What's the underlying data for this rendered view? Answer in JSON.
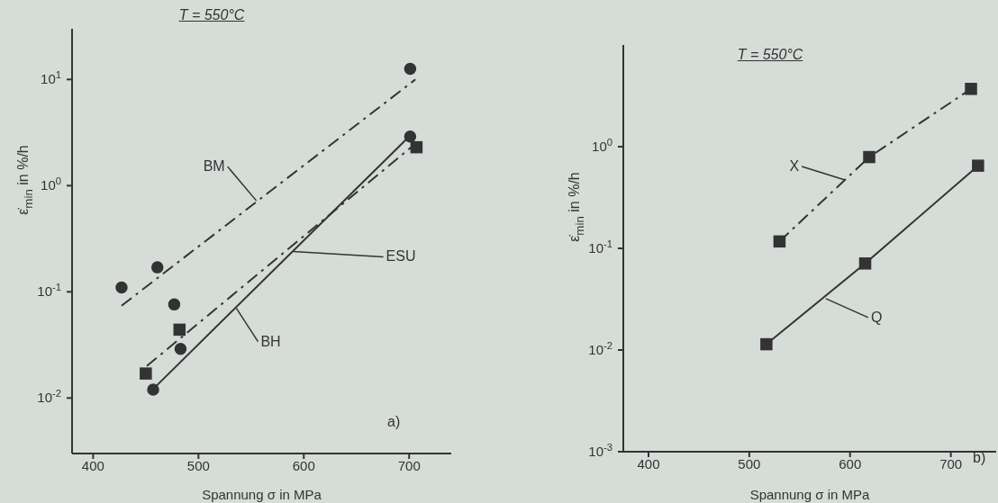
{
  "chart_data": [
    {
      "type": "scatter",
      "title": "T = 550°C",
      "xlabel": "Spannung σ in MPa",
      "ylabel": "ε̇$_{min}$ in %/h",
      "log": "y",
      "xlim": [
        380,
        740
      ],
      "xticks": [
        400,
        500,
        600,
        700
      ],
      "ylim": [
        0.003,
        30
      ],
      "yticks": [
        {
          "value": 10,
          "label": "10$^{1}$"
        },
        {
          "value": 1,
          "label": "10$^{0}$"
        },
        {
          "value": 0.1,
          "label": "10$^{-1}$"
        },
        {
          "value": 0.01,
          "label": "10$^{-2}$"
        }
      ],
      "series": [
        {
          "marker": "circle",
          "color": "#333333",
          "x": [
            427,
            461,
            477,
            701
          ],
          "values": [
            0.11,
            0.17,
            0.076,
            12.6
          ]
        },
        {
          "marker": "square",
          "color": "#333333",
          "x": [
            450,
            482,
            707
          ],
          "values": [
            0.017,
            0.044,
            2.3
          ]
        },
        {
          "marker": "circle",
          "color": "#333333",
          "x": [
            457,
            483,
            701
          ],
          "values": [
            0.012,
            0.029,
            2.9
          ]
        },
        {
          "type": "line",
          "line_style": "dashed",
          "color": "#333333",
          "x": [
            427,
            706
          ],
          "values": [
            0.074,
            10
          ]
        },
        {
          "type": "line",
          "line_style": "dashed",
          "color": "#333333",
          "x": [
            451,
            702
          ],
          "values": [
            0.02,
            2.3
          ]
        },
        {
          "type": "line",
          "line_style": "solid",
          "color": "#333333",
          "x": [
            460,
            700
          ],
          "values": [
            0.013,
            2.9
          ]
        }
      ],
      "annotations": [
        {
          "text": "BM",
          "x": 555,
          "y": 0.72
        },
        {
          "text": "ESU",
          "x": 590,
          "y": 0.24
        },
        {
          "text": "BH",
          "x": 536,
          "y": 0.07
        },
        "a)"
      ]
    },
    {
      "type": "scatter",
      "title": "T = 550°C",
      "xlabel": "Spannung σ in MPa",
      "ylabel": "ε̇$_{min}$ in %/h",
      "log": "y",
      "xlim": [
        375,
        745
      ],
      "xticks": [
        400,
        500,
        600,
        700
      ],
      "ylim": [
        0.001,
        10
      ],
      "yticks": [
        {
          "value": 1,
          "label": "10$^{0}$"
        },
        {
          "value": 0.1,
          "label": "10$^{-1}$"
        },
        {
          "value": 0.01,
          "label": "10$^{-2}$"
        },
        {
          "value": 0.001,
          "label": "10$^{-3}$"
        }
      ],
      "series": [
        {
          "marker": "square",
          "color": "#333333",
          "x": [
            530,
            619,
            720
          ],
          "values": [
            0.117,
            0.79,
            3.7
          ]
        },
        {
          "marker": "square",
          "color": "#333333",
          "x": [
            517,
            615,
            727
          ],
          "values": [
            0.0114,
            0.071,
            0.65
          ]
        },
        {
          "type": "line",
          "line_style": "dashed",
          "color": "#333333",
          "x": [
            530,
            619,
            720
          ],
          "values": [
            0.117,
            0.79,
            3.7
          ]
        },
        {
          "type": "line",
          "line_style": "solid",
          "color": "#333333",
          "x": [
            517,
            615,
            727
          ],
          "values": [
            0.0114,
            0.071,
            0.65
          ]
        }
      ],
      "annotations": [
        {
          "text": "X",
          "x": 595,
          "y": 0.47
        },
        {
          "text": "Q",
          "x": 576,
          "y": 0.032
        },
        "b)"
      ]
    }
  ]
}
